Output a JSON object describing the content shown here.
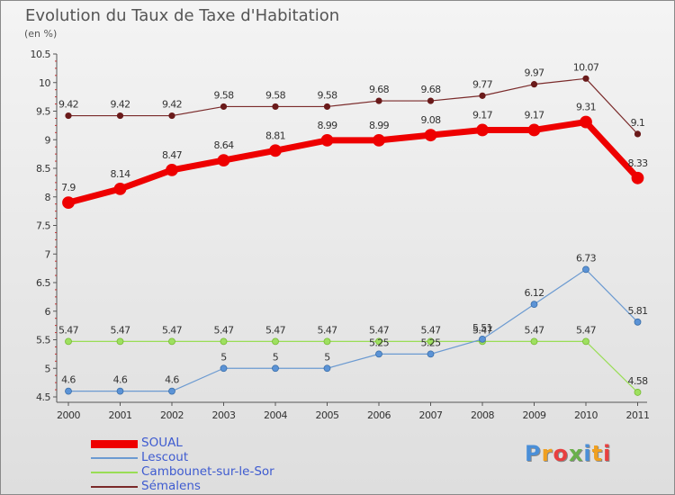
{
  "title": "Evolution du Taux de Taxe d'Habitation",
  "unit": "(en %)",
  "logo": "Proxiti",
  "colors": {
    "SOUAL": "#ee0000",
    "Lescout": "#6b9ad1",
    "Cambounet-sur-le-Sor": "#99dd55",
    "Sémalens": "#7a2a2a"
  },
  "chart_data": {
    "type": "line",
    "title": "Evolution du Taux de Taxe d'Habitation",
    "ylabel": "(en %)",
    "xlabel": "",
    "ylim": [
      4.5,
      10.5
    ],
    "yticks": [
      "4.5",
      "5",
      "5.5",
      "6",
      "6.5",
      "7",
      "7.5",
      "8",
      "8.5",
      "9",
      "9.5",
      "10",
      "10.5"
    ],
    "categories": [
      "2000",
      "2001",
      "2002",
      "2003",
      "2004",
      "2005",
      "2006",
      "2007",
      "2008",
      "2009",
      "2010",
      "2011"
    ],
    "legend_position": "bottom-left",
    "grid": false,
    "series": [
      {
        "name": "SOUAL",
        "values": [
          7.9,
          8.14,
          8.47,
          8.64,
          8.81,
          8.99,
          8.99,
          9.08,
          9.17,
          9.17,
          9.31,
          8.33
        ],
        "labels": [
          "7.9",
          "8.14",
          "8.47",
          "8.64",
          "8.81",
          "8.99",
          "8.99",
          "9.08",
          "9.17",
          "9.17",
          "9.31",
          "8.33"
        ]
      },
      {
        "name": "Lescout",
        "values": [
          4.6,
          4.6,
          4.6,
          5,
          5,
          5,
          5.25,
          5.25,
          5.51,
          6.12,
          6.73,
          5.81
        ],
        "labels": [
          "4.6",
          "4.6",
          "4.6",
          "5",
          "5",
          "5",
          "5.25",
          "5.25",
          "5.51",
          "6.12",
          "6.73",
          "5.81"
        ]
      },
      {
        "name": "Cambounet-sur-le-Sor",
        "values": [
          5.47,
          5.47,
          5.47,
          5.47,
          5.47,
          5.47,
          5.47,
          5.47,
          5.47,
          5.47,
          5.47,
          4.58
        ],
        "labels": [
          "5.47",
          "5.47",
          "5.47",
          "5.47",
          "5.47",
          "5.47",
          "5.47",
          "5.47",
          "5.47",
          "5.47",
          "5.47",
          "4.58"
        ]
      },
      {
        "name": "Sémalens",
        "values": [
          9.42,
          9.42,
          9.42,
          9.58,
          9.58,
          9.58,
          9.68,
          9.68,
          9.77,
          9.97,
          10.07,
          9.1
        ],
        "labels": [
          "9.42",
          "9.42",
          "9.42",
          "9.58",
          "9.58",
          "9.58",
          "9.68",
          "9.68",
          "9.77",
          "9.97",
          "10.07",
          "9.1"
        ]
      }
    ]
  }
}
